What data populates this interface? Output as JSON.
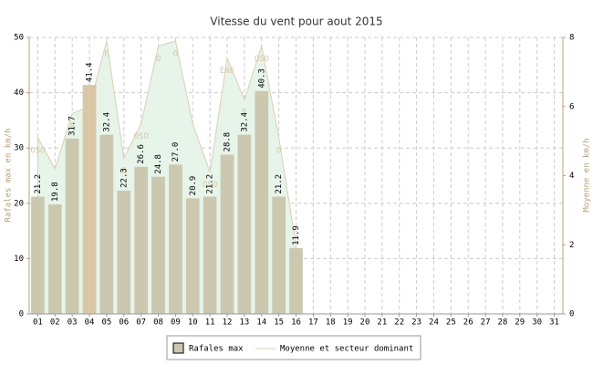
{
  "chart_data": {
    "type": "bar",
    "title": "Vitesse du vent pour aout 2015",
    "ylabel": "Rafales max en km/h",
    "y2label": "Moyenne en km/h",
    "categories": [
      "01",
      "02",
      "03",
      "04",
      "05",
      "06",
      "07",
      "08",
      "09",
      "10",
      "11",
      "12",
      "13",
      "14",
      "15",
      "16",
      "17",
      "18",
      "19",
      "20",
      "21",
      "22",
      "23",
      "24",
      "25",
      "26",
      "27",
      "28",
      "29",
      "30",
      "31"
    ],
    "series": [
      {
        "name": "Rafales max",
        "type": "bar",
        "color": "#ccc8b0",
        "highlight_color": "#d9c6a5",
        "values": [
          21.2,
          19.8,
          31.7,
          41.4,
          32.4,
          22.3,
          26.6,
          24.8,
          27.0,
          20.9,
          21.2,
          28.8,
          32.4,
          40.3,
          21.2,
          11.9,
          null,
          null,
          null,
          null,
          null,
          null,
          null,
          null,
          null,
          null,
          null,
          null,
          null,
          null,
          null
        ],
        "value_labels": [
          "21.2",
          "19.8",
          "31.7",
          "41.4",
          "32.4",
          "22.3",
          "26.6",
          "24.8",
          "27.0",
          "20.9",
          "21.2",
          "28.8",
          "32.4",
          "40.3",
          "21.2",
          "11.9",
          null,
          null,
          null,
          null,
          null,
          null,
          null,
          null,
          null,
          null,
          null,
          null,
          null,
          null,
          null
        ]
      },
      {
        "name": "Moyenne et secteur dominant",
        "type": "area",
        "axis": "y2",
        "color": "#e6f4ea",
        "line_color": "#dccfb4",
        "values": [
          5.1,
          4.2,
          5.8,
          6.0,
          7.9,
          4.5,
          5.5,
          7.75,
          7.9,
          5.5,
          4.1,
          7.4,
          6.2,
          7.75,
          5.1,
          2.0,
          null,
          null,
          null,
          null,
          null,
          null,
          null,
          null,
          null,
          null,
          null,
          null,
          null,
          null,
          null
        ],
        "sectors": [
          "OSO",
          null,
          "E",
          "OSO",
          "E",
          "E",
          "OSO",
          "O",
          "O",
          null,
          "OSO",
          "ENE",
          "E",
          "OSO",
          "O",
          "ONO",
          null,
          null,
          null,
          null,
          null,
          null,
          null,
          null,
          null,
          null,
          null,
          null,
          null,
          null,
          null
        ]
      }
    ],
    "ylim": [
      0,
      50
    ],
    "yticks": [
      0,
      10,
      20,
      30,
      40,
      50
    ],
    "y2lim": [
      0,
      8
    ],
    "y2ticks": [
      0,
      2,
      4,
      6,
      8
    ],
    "grid": true
  }
}
